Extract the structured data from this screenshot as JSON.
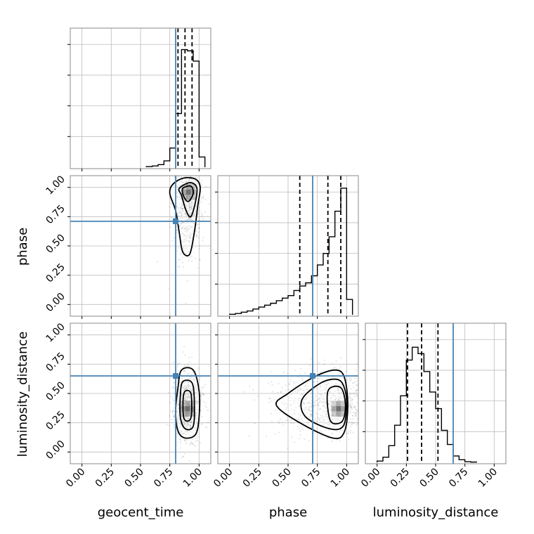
{
  "chart_data": {
    "type": "corner",
    "parameters": [
      "geocent_time",
      "phase",
      "luminosity_distance"
    ],
    "range": [
      -0.1,
      1.1
    ],
    "tick_values": [
      0.0,
      0.25,
      0.5,
      0.75,
      1.0
    ],
    "tick_labels": [
      "0.00",
      "0.25",
      "0.50",
      "0.75",
      "1.00"
    ],
    "truths": {
      "geocent_time": 0.8,
      "phase": 0.71,
      "luminosity_distance": 0.65
    },
    "truth_color": "#4682b4",
    "grid": true,
    "histograms": [
      {
        "parameter": "geocent_time",
        "bin_edges": [
          0.55,
          0.6,
          0.65,
          0.7,
          0.75,
          0.8,
          0.85,
          0.9,
          0.95,
          1.0,
          1.05
        ],
        "counts": [
          0.005,
          0.01,
          0.02,
          0.05,
          0.15,
          0.42,
          0.92,
          0.91,
          0.83,
          0.08
        ],
        "quantiles": [
          0.82,
          0.88,
          0.94
        ]
      },
      {
        "parameter": "phase",
        "bin_edges": [
          0.0,
          0.05,
          0.1,
          0.15,
          0.2,
          0.25,
          0.3,
          0.35,
          0.4,
          0.45,
          0.5,
          0.55,
          0.6,
          0.65,
          0.7,
          0.75,
          0.8,
          0.85,
          0.9,
          0.95,
          1.0,
          1.05
        ],
        "counts": [
          0.004,
          0.01,
          0.02,
          0.03,
          0.045,
          0.06,
          0.075,
          0.09,
          0.11,
          0.13,
          0.15,
          0.19,
          0.225,
          0.25,
          0.305,
          0.39,
          0.48,
          0.61,
          0.81,
          0.99,
          0.12
        ],
        "quantiles": [
          0.6,
          0.84,
          0.95
        ]
      },
      {
        "parameter": "luminosity_distance",
        "bin_edges": [
          0.0,
          0.05,
          0.1,
          0.15,
          0.2,
          0.25,
          0.3,
          0.35,
          0.4,
          0.45,
          0.5,
          0.55,
          0.6,
          0.65,
          0.7,
          0.75,
          0.8,
          0.85
        ],
        "counts": [
          0.01,
          0.04,
          0.13,
          0.29,
          0.52,
          0.8,
          0.9,
          0.85,
          0.71,
          0.55,
          0.42,
          0.25,
          0.14,
          0.05,
          0.02,
          0.005,
          0.002
        ],
        "quantiles": [
          0.26,
          0.38,
          0.52
        ]
      }
    ],
    "density_panels": [
      {
        "x": "geocent_time",
        "y": "phase",
        "center": [
          0.9,
          0.9
        ],
        "spread": [
          0.06,
          0.22
        ],
        "peak": [
          0.91,
          0.96
        ],
        "contours": [
          [
            [
              0.78,
              1.03
            ],
            [
              0.87,
              1.08
            ],
            [
              0.97,
              1.07
            ],
            [
              1.01,
              1.0
            ],
            [
              0.99,
              0.85
            ],
            [
              0.96,
              0.62
            ],
            [
              0.92,
              0.43
            ],
            [
              0.86,
              0.45
            ],
            [
              0.83,
              0.62
            ],
            [
              0.8,
              0.8
            ],
            [
              0.75,
              0.95
            ]
          ],
          [
            [
              0.83,
              0.99
            ],
            [
              0.92,
              1.04
            ],
            [
              0.98,
              1.0
            ],
            [
              0.97,
              0.88
            ],
            [
              0.93,
              0.75
            ],
            [
              0.89,
              0.8
            ],
            [
              0.85,
              0.93
            ]
          ],
          [
            [
              0.86,
              0.99
            ],
            [
              0.93,
              1.01
            ],
            [
              0.95,
              0.95
            ],
            [
              0.91,
              0.88
            ],
            [
              0.87,
              0.92
            ]
          ]
        ]
      },
      {
        "x": "geocent_time",
        "y": "luminosity_distance",
        "center": [
          0.9,
          0.4
        ],
        "spread": [
          0.06,
          0.15
        ],
        "peak": [
          0.9,
          0.37
        ],
        "contours": [
          [
            [
              0.85,
              0.7
            ],
            [
              0.95,
              0.7
            ],
            [
              1.0,
              0.52
            ],
            [
              1.0,
              0.3
            ],
            [
              0.97,
              0.15
            ],
            [
              0.88,
              0.12
            ],
            [
              0.82,
              0.18
            ],
            [
              0.8,
              0.35
            ],
            [
              0.82,
              0.55
            ]
          ],
          [
            [
              0.86,
              0.6
            ],
            [
              0.94,
              0.59
            ],
            [
              0.96,
              0.42
            ],
            [
              0.95,
              0.22
            ],
            [
              0.88,
              0.2
            ],
            [
              0.84,
              0.3
            ],
            [
              0.84,
              0.48
            ]
          ],
          [
            [
              0.87,
              0.5
            ],
            [
              0.93,
              0.5
            ],
            [
              0.93,
              0.29
            ],
            [
              0.87,
              0.29
            ]
          ]
        ]
      },
      {
        "x": "phase",
        "y": "luminosity_distance",
        "center": [
          0.82,
          0.4
        ],
        "spread": [
          0.2,
          0.14
        ],
        "peak": [
          0.93,
          0.37
        ],
        "contours": [
          [
            [
              0.4,
              0.4
            ],
            [
              0.5,
              0.5
            ],
            [
              0.72,
              0.64
            ],
            [
              0.9,
              0.7
            ],
            [
              0.98,
              0.64
            ],
            [
              1.01,
              0.4
            ],
            [
              0.98,
              0.17
            ],
            [
              0.88,
              0.12
            ],
            [
              0.6,
              0.25
            ]
          ],
          [
            [
              0.62,
              0.45
            ],
            [
              0.78,
              0.59
            ],
            [
              0.92,
              0.62
            ],
            [
              0.98,
              0.55
            ],
            [
              1.0,
              0.4
            ],
            [
              0.97,
              0.22
            ],
            [
              0.85,
              0.2
            ],
            [
              0.65,
              0.3
            ]
          ],
          [
            [
              0.84,
              0.52
            ],
            [
              0.95,
              0.55
            ],
            [
              0.99,
              0.4
            ],
            [
              0.96,
              0.26
            ],
            [
              0.86,
              0.27
            ]
          ]
        ]
      }
    ],
    "scatter_points": [
      {
        "x": 0.85,
        "y": 0.3
      },
      {
        "x": 0.78,
        "y": 0.55
      },
      {
        "x": 0.95,
        "y": 0.35
      },
      {
        "x": 0.88,
        "y": 0.25
      },
      {
        "x": 0.82,
        "y": 0.45
      },
      {
        "x": 0.92,
        "y": 0.2
      },
      {
        "x": 0.86,
        "y": 0.6
      },
      {
        "x": 0.9,
        "y": 0.1
      },
      {
        "x": 0.8,
        "y": 0.35
      },
      {
        "x": 0.75,
        "y": 0.8
      },
      {
        "x": 0.93,
        "y": 0.5
      },
      {
        "x": 0.84,
        "y": 0.15
      }
    ]
  }
}
